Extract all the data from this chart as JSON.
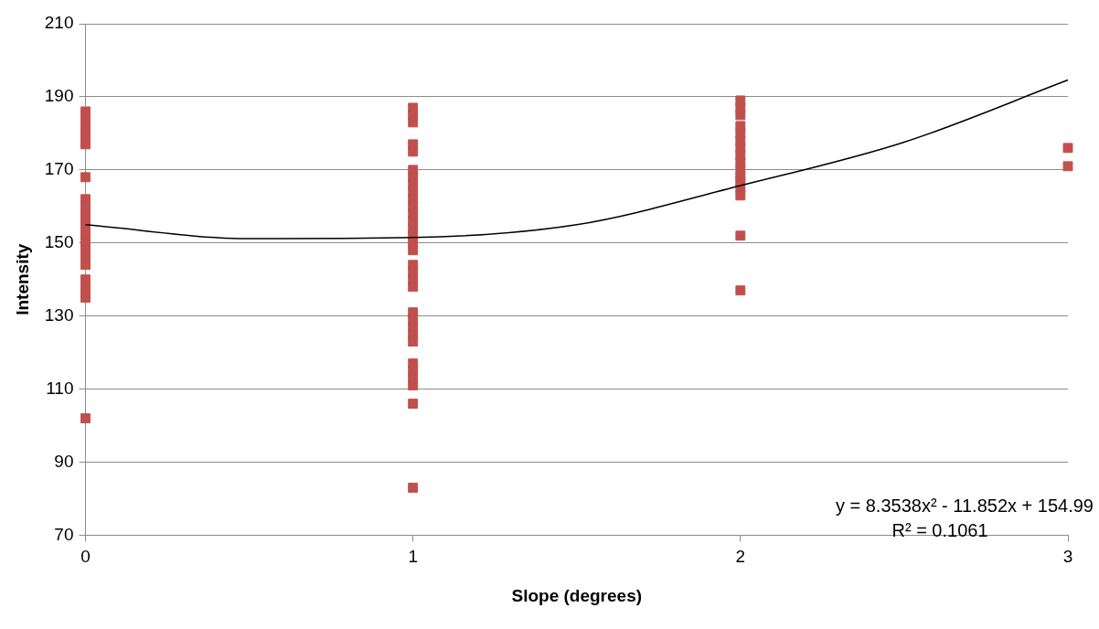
{
  "chart_data": {
    "type": "scatter",
    "xlabel": "Slope (degrees)",
    "ylabel": "Intensity",
    "xlim": [
      0,
      3
    ],
    "xticks": [
      0,
      1,
      2,
      3
    ],
    "ylim": [
      70,
      210
    ],
    "yticks": [
      70,
      90,
      110,
      130,
      150,
      170,
      190,
      210
    ],
    "grid": "y",
    "legend": false,
    "marker": "square",
    "series": [
      {
        "color": "#c0504d",
        "x": [
          0,
          0,
          0,
          0,
          0,
          0,
          0,
          0,
          0,
          0,
          0,
          0,
          0,
          0,
          0,
          0,
          0,
          0,
          0,
          0,
          0,
          0,
          1,
          1,
          1,
          1,
          1,
          1,
          1,
          1,
          1,
          1,
          1,
          1,
          1,
          1,
          1,
          1,
          1,
          1,
          1,
          1,
          1,
          1,
          1,
          1,
          1,
          1,
          1,
          1,
          1,
          1,
          1,
          1,
          2,
          2,
          2,
          2,
          2,
          2,
          2,
          2,
          2,
          2,
          2,
          2,
          2,
          2,
          2,
          2,
          3,
          3
        ],
        "values": [
          186,
          184,
          182,
          180,
          178,
          177,
          168,
          162,
          160,
          158,
          156,
          154,
          152,
          150,
          148,
          146,
          144,
          140,
          138,
          136,
          135,
          102,
          187,
          185,
          183,
          177,
          175,
          170,
          168,
          166,
          164,
          162,
          160,
          158,
          156,
          154,
          152,
          150,
          148,
          144,
          142,
          140,
          138,
          131,
          129,
          127,
          125,
          123,
          117,
          115,
          113,
          111,
          106,
          83,
          189,
          187,
          185,
          182,
          180,
          178,
          176,
          174,
          172,
          170,
          168,
          167,
          165,
          163,
          152,
          137,
          176,
          171
        ]
      },
      {
        "type": "line",
        "color": "#000000",
        "marker": "none",
        "line_style": "solid",
        "x": [
          0,
          0.5,
          1,
          1.5,
          2,
          2.5,
          3
        ],
        "values": [
          155.0,
          151.2,
          151.5,
          155.0,
          165.7,
          177.6,
          194.6
        ]
      }
    ],
    "annotations": [
      "y = 8.3538x² - 11.852x + 154.99",
      "R² = 0.1061"
    ]
  }
}
